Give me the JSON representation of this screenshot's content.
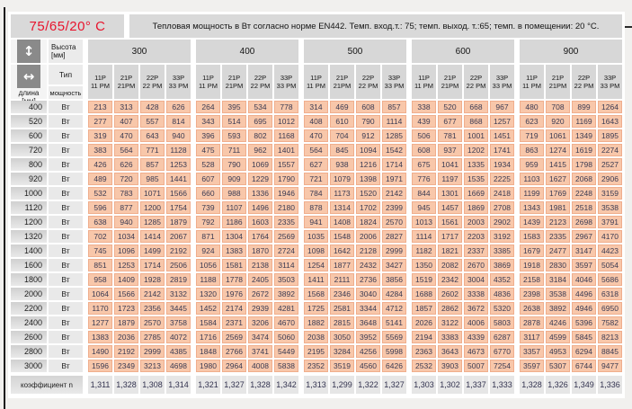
{
  "header": {
    "temp_label": "75/65/20° C",
    "title": "Тепловая мощность в Вт согласно норме EN442. Темп. вход.т.: 75; темп. выход. т.:65; темп. в помещении: 20 °С."
  },
  "axis": {
    "height_label": "Высота",
    "height_unit": "[мм]",
    "length_label": "длина",
    "length_unit": "[мм]",
    "type_label": "Тип",
    "power_label": "мощность",
    "watt_label": "Вт",
    "coefficient_label": "коэффициент n",
    "updown_arrow_icon": "↕",
    "leftright_arrow_icon": "↔"
  },
  "heights": [
    "300",
    "400",
    "500",
    "600",
    "900"
  ],
  "types": [
    [
      "11P",
      "11 PM"
    ],
    [
      "21P",
      "21PM"
    ],
    [
      "22P",
      "22 PM"
    ],
    [
      "33P",
      "33 PM"
    ]
  ],
  "rows": [
    {
      "length": "400",
      "values": [
        213,
        313,
        428,
        626,
        264,
        395,
        534,
        778,
        314,
        469,
        608,
        857,
        338,
        520,
        668,
        967,
        480,
        708,
        899,
        1264
      ]
    },
    {
      "length": "520",
      "values": [
        277,
        407,
        557,
        814,
        343,
        514,
        695,
        1012,
        408,
        610,
        790,
        1114,
        439,
        677,
        868,
        1257,
        623,
        920,
        1169,
        1643
      ]
    },
    {
      "length": "600",
      "values": [
        319,
        470,
        643,
        940,
        396,
        593,
        802,
        1168,
        470,
        704,
        912,
        1285,
        506,
        781,
        1001,
        1451,
        719,
        1061,
        1349,
        1895
      ]
    },
    {
      "length": "720",
      "values": [
        383,
        564,
        771,
        1128,
        475,
        711,
        962,
        1401,
        564,
        845,
        1094,
        1542,
        608,
        937,
        1202,
        1741,
        863,
        1274,
        1619,
        2274
      ]
    },
    {
      "length": "800",
      "values": [
        426,
        626,
        857,
        1253,
        528,
        790,
        1069,
        1557,
        627,
        938,
        1216,
        1714,
        675,
        1041,
        1335,
        1934,
        959,
        1415,
        1798,
        2527
      ]
    },
    {
      "length": "920",
      "values": [
        489,
        720,
        985,
        1441,
        607,
        909,
        1229,
        1790,
        721,
        1079,
        1398,
        1971,
        776,
        1197,
        1535,
        2225,
        1103,
        1627,
        2068,
        2906
      ]
    },
    {
      "length": "1000",
      "values": [
        532,
        783,
        1071,
        1566,
        660,
        988,
        1336,
        1946,
        784,
        1173,
        1520,
        2142,
        844,
        1301,
        1669,
        2418,
        1199,
        1769,
        2248,
        3159
      ]
    },
    {
      "length": "1120",
      "values": [
        596,
        877,
        1200,
        1754,
        739,
        1107,
        1496,
        2180,
        878,
        1314,
        1702,
        2399,
        945,
        1457,
        1869,
        2708,
        1343,
        1981,
        2518,
        3538
      ]
    },
    {
      "length": "1200",
      "values": [
        638,
        940,
        1285,
        1879,
        792,
        1186,
        1603,
        2335,
        941,
        1408,
        1824,
        2570,
        1013,
        1561,
        2003,
        2902,
        1439,
        2123,
        2698,
        3791
      ]
    },
    {
      "length": "1320",
      "values": [
        702,
        1034,
        1414,
        2067,
        871,
        1304,
        1764,
        2569,
        1035,
        1548,
        2006,
        2827,
        1114,
        1717,
        2203,
        3192,
        1583,
        2335,
        2967,
        4170
      ]
    },
    {
      "length": "1400",
      "values": [
        745,
        1096,
        1499,
        2192,
        924,
        1383,
        1870,
        2724,
        1098,
        1642,
        2128,
        2999,
        1182,
        1821,
        2337,
        3385,
        1679,
        2477,
        3147,
        4423
      ]
    },
    {
      "length": "1600",
      "values": [
        851,
        1253,
        1714,
        2506,
        1056,
        1581,
        2138,
        3114,
        1254,
        1877,
        2432,
        3427,
        1350,
        2082,
        2670,
        3869,
        1918,
        2830,
        3597,
        5054
      ]
    },
    {
      "length": "1800",
      "values": [
        958,
        1409,
        1928,
        2819,
        1188,
        1778,
        2405,
        3503,
        1411,
        2111,
        2736,
        3856,
        1519,
        2342,
        3004,
        4352,
        2158,
        3184,
        4046,
        5686
      ]
    },
    {
      "length": "2000",
      "values": [
        1064,
        1566,
        2142,
        3132,
        1320,
        1976,
        2672,
        3892,
        1568,
        2346,
        3040,
        4284,
        1688,
        2602,
        3338,
        4836,
        2398,
        3538,
        4496,
        6318
      ]
    },
    {
      "length": "2200",
      "values": [
        1170,
        1723,
        2356,
        3445,
        1452,
        2174,
        2939,
        4281,
        1725,
        2581,
        3344,
        4712,
        1857,
        2862,
        3672,
        5320,
        2638,
        3892,
        4946,
        6950
      ]
    },
    {
      "length": "2400",
      "values": [
        1277,
        1879,
        2570,
        3758,
        1584,
        2371,
        3206,
        4670,
        1882,
        2815,
        3648,
        5141,
        2026,
        3122,
        4006,
        5803,
        2878,
        4246,
        5396,
        7582
      ]
    },
    {
      "length": "2600",
      "values": [
        1383,
        2036,
        2785,
        4072,
        1716,
        2569,
        3474,
        5060,
        2038,
        3050,
        3952,
        5569,
        2194,
        3383,
        4339,
        6287,
        3117,
        4599,
        5845,
        8213
      ]
    },
    {
      "length": "2800",
      "values": [
        1490,
        2192,
        2999,
        4385,
        1848,
        2766,
        3741,
        5449,
        2195,
        3284,
        4256,
        5998,
        2363,
        3643,
        4673,
        6770,
        3357,
        4953,
        6294,
        8845
      ]
    },
    {
      "length": "3000",
      "values": [
        1596,
        2349,
        3213,
        4698,
        1980,
        2964,
        4008,
        5838,
        2352,
        3519,
        4560,
        6426,
        2532,
        3903,
        5007,
        7254,
        3597,
        5307,
        6744,
        9477
      ]
    }
  ],
  "coefficients": [
    "1,311",
    "1,328",
    "1,308",
    "1,314",
    "1,321",
    "1,327",
    "1,328",
    "1,342",
    "1,313",
    "1,299",
    "1,322",
    "1,327",
    "1,303",
    "1,302",
    "1,337",
    "1,333",
    "1,328",
    "1,326",
    "1,349",
    "1,336"
  ]
}
